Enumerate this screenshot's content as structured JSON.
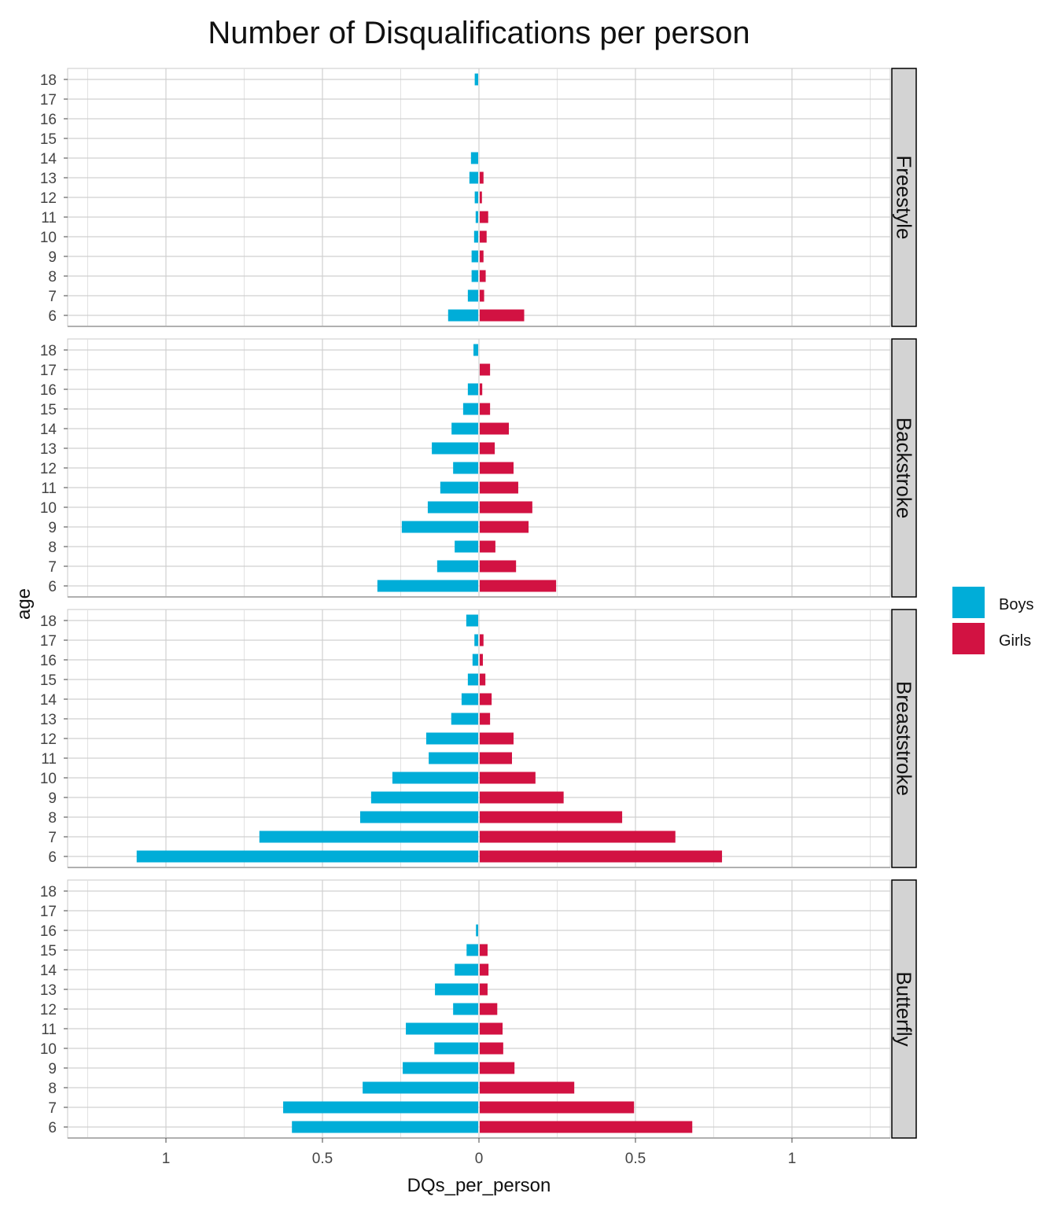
{
  "chart_data": {
    "type": "bar",
    "orientation": "horizontal",
    "title": "Number of Disqualifications per person",
    "xlabel": "DQs_per_person",
    "ylabel": "age",
    "xlim": [
      -1.3,
      1.3
    ],
    "x_ticks": [
      -1,
      -0.5,
      0,
      0.5,
      1
    ],
    "x_tick_labels": [
      "1",
      "0.5",
      "0",
      "0.5",
      "1"
    ],
    "categories": [
      "6",
      "7",
      "8",
      "9",
      "10",
      "11",
      "12",
      "13",
      "14",
      "15",
      "16",
      "17",
      "18"
    ],
    "legend": {
      "position": "right",
      "entries": [
        "Boys",
        "Girls"
      ]
    },
    "colors": {
      "Boys": "#00ADD8",
      "Girls": "#D21242"
    },
    "grid": true,
    "facets": [
      {
        "name": "Freestyle",
        "series": [
          {
            "name": "Boys",
            "values": [
              0.096,
              0.033,
              0.021,
              0.021,
              0.013,
              0.008,
              0.011,
              0.028,
              0.023,
              0,
              0,
              0,
              0.011
            ]
          },
          {
            "name": "Girls",
            "values": [
              0.142,
              0.014,
              0.019,
              0.012,
              0.022,
              0.027,
              0.007,
              0.012,
              0,
              0,
              0,
              0,
              0
            ]
          }
        ]
      },
      {
        "name": "Backstroke",
        "series": [
          {
            "name": "Boys",
            "values": [
              0.322,
              0.131,
              0.075,
              0.244,
              0.161,
              0.121,
              0.08,
              0.148,
              0.085,
              0.048,
              0.033,
              0,
              0.015
            ]
          },
          {
            "name": "Girls",
            "values": [
              0.244,
              0.116,
              0.05,
              0.156,
              0.168,
              0.123,
              0.108,
              0.048,
              0.093,
              0.033,
              0.008,
              0.033,
              0
            ]
          }
        ]
      },
      {
        "name": "Breaststroke",
        "series": [
          {
            "name": "Boys",
            "values": [
              1.091,
              0.699,
              0.377,
              0.342,
              0.274,
              0.158,
              0.166,
              0.086,
              0.053,
              0.033,
              0.018,
              0.012,
              0.038
            ]
          },
          {
            "name": "Girls",
            "values": [
              0.774,
              0.625,
              0.455,
              0.268,
              0.178,
              0.103,
              0.108,
              0.033,
              0.038,
              0.018,
              0.01,
              0.012,
              0
            ]
          }
        ]
      },
      {
        "name": "Butterfly",
        "series": [
          {
            "name": "Boys",
            "values": [
              0.595,
              0.623,
              0.369,
              0.241,
              0.14,
              0.231,
              0.08,
              0.138,
              0.075,
              0.037,
              0.007,
              0,
              0
            ]
          },
          {
            "name": "Girls",
            "values": [
              0.679,
              0.493,
              0.302,
              0.111,
              0.075,
              0.073,
              0.056,
              0.025,
              0.028,
              0.025,
              0,
              0,
              0
            ]
          }
        ]
      }
    ]
  }
}
